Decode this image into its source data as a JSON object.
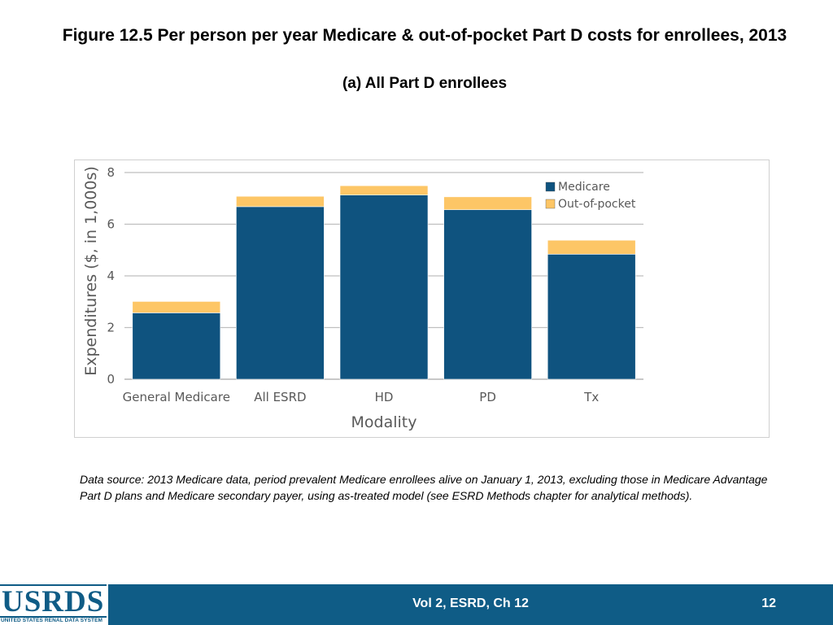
{
  "page": {
    "title": "Figure 12.5 Per person per year Medicare & out-of-pocket Part D costs for enrollees, 2013",
    "subtitle": "(a) All Part D enrollees",
    "data_source": "Data source: 2013 Medicare data, period prevalent Medicare enrollees alive on January 1, 2013, excluding those in Medicare Advantage Part D plans and Medicare secondary payer, using as-treated model (see ESRD Methods chapter for analytical methods).",
    "footer_text": "Vol 2, ESRD, Ch 12",
    "page_number": "12"
  },
  "logo": {
    "word": "USRDS",
    "subtitle": "UNITED STATES RENAL DATA SYSTEM"
  },
  "colors": {
    "medicare": "#0f537f",
    "out_of_pocket": "#fdc666",
    "grid": "#bfbfbf",
    "axis_text": "#595959",
    "brand": "#0f5c86"
  },
  "chart_data": {
    "type": "bar",
    "stacked": true,
    "categories": [
      "General Medicare",
      "All ESRD",
      "HD",
      "PD",
      "Tx"
    ],
    "series": [
      {
        "name": "Medicare",
        "values": [
          2.57,
          6.68,
          7.13,
          6.56,
          4.84
        ]
      },
      {
        "name": "Out-of-pocket",
        "values": [
          0.44,
          0.4,
          0.36,
          0.5,
          0.54
        ]
      }
    ],
    "xlabel": "Modality",
    "ylabel": "Expenditures ($, in 1,000s)",
    "ylim": [
      0,
      8
    ],
    "yticks": [
      "0",
      "2",
      "4",
      "6",
      "8"
    ],
    "grid": true,
    "legend": "top-right"
  }
}
